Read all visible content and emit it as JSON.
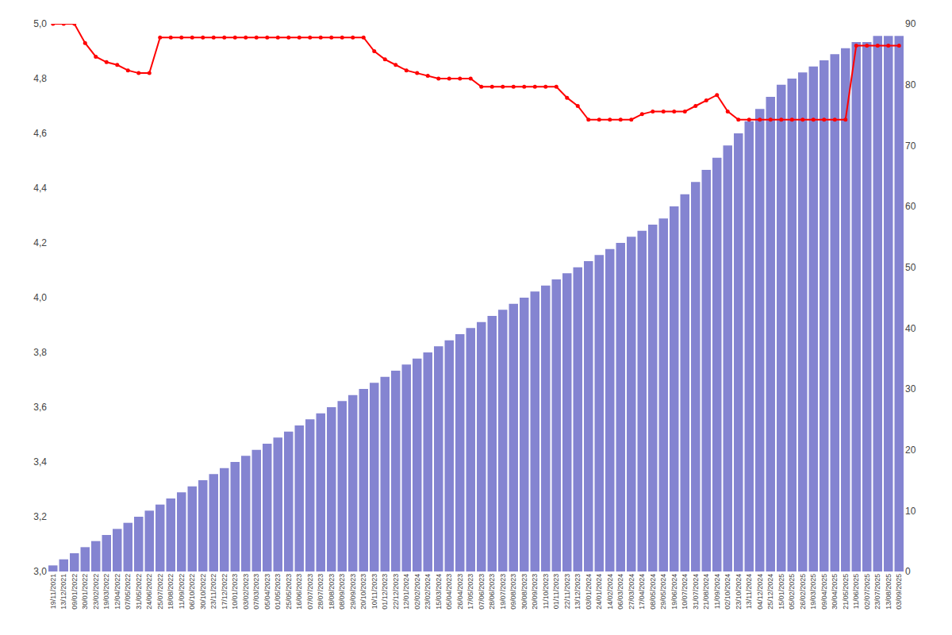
{
  "chart_data": {
    "type": "bar",
    "categories": [
      "19/11/2021",
      "13/12/2021",
      "09/01/2022",
      "30/01/2022",
      "23/02/2022",
      "19/03/2022",
      "12/04/2022",
      "07/05/2022",
      "31/05/2022",
      "24/06/2022",
      "25/07/2022",
      "18/08/2022",
      "11/09/2022",
      "06/10/2022",
      "30/10/2022",
      "23/11/2022",
      "17/12/2022",
      "10/01/2023",
      "03/02/2023",
      "07/03/2023",
      "05/04/2023",
      "01/05/2023",
      "25/05/2023",
      "16/06/2023",
      "07/07/2023",
      "28/07/2023",
      "18/08/2023",
      "08/09/2023",
      "29/09/2023",
      "20/10/2023",
      "10/11/2023",
      "01/12/2023",
      "22/12/2023",
      "12/01/2024",
      "02/02/2024",
      "23/02/2024",
      "15/03/2024",
      "05/04/2023",
      "26/04/2023",
      "17/05/2023",
      "07/06/2023",
      "28/06/2023",
      "19/07/2023",
      "09/08/2023",
      "30/08/2023",
      "20/09/2023",
      "11/10/2023",
      "01/11/2023",
      "22/11/2023",
      "13/12/2023",
      "03/01/2024",
      "24/01/2024",
      "14/02/2024",
      "06/03/2024",
      "27/03/2024",
      "17/04/2024",
      "08/05/2024",
      "29/05/2024",
      "19/06/2024",
      "10/07/2024",
      "31/07/2024",
      "21/08/2024",
      "11/09/2024",
      "02/10/2024",
      "23/10/2024",
      "13/11/2024",
      "04/12/2024",
      "25/12/2024",
      "15/01/2025",
      "05/02/2025",
      "26/02/2025",
      "19/03/2025",
      "09/04/2025",
      "30/04/2025",
      "21/05/2025",
      "11/06/2025",
      "02/07/2025",
      "23/07/2025",
      "13/08/2025",
      "03/09/2025"
    ],
    "series": [
      {
        "type": "bar",
        "axis": "y2",
        "color": "#7777cc",
        "values": [
          1,
          2,
          3,
          4,
          5,
          6,
          7,
          8,
          9,
          10,
          11,
          12,
          13,
          14,
          15,
          16,
          17,
          18,
          19,
          20,
          21,
          22,
          23,
          24,
          25,
          26,
          27,
          28,
          29,
          30,
          31,
          32,
          33,
          34,
          35,
          36,
          37,
          38,
          39,
          40,
          41,
          42,
          43,
          44,
          45,
          46,
          47,
          48,
          49,
          50,
          51,
          52,
          53,
          54,
          55,
          56,
          57,
          58,
          60,
          62,
          64,
          66,
          68,
          70,
          72,
          74,
          76,
          78,
          80,
          81,
          82,
          83,
          84,
          85,
          86,
          87,
          87,
          88,
          88,
          88
        ]
      },
      {
        "type": "line",
        "color": "#ff0000",
        "marker": "circle",
        "values": [
          5.0,
          5.0,
          5.0,
          4.93,
          4.88,
          4.86,
          4.85,
          4.83,
          4.82,
          4.82,
          4.95,
          4.95,
          4.95,
          4.95,
          4.95,
          4.95,
          4.95,
          4.95,
          4.95,
          4.95,
          4.95,
          4.95,
          4.95,
          4.95,
          4.95,
          4.95,
          4.95,
          4.95,
          4.95,
          4.95,
          4.9,
          4.87,
          4.85,
          4.83,
          4.82,
          4.81,
          4.8,
          4.8,
          4.8,
          4.8,
          4.77,
          4.77,
          4.77,
          4.77,
          4.77,
          4.77,
          4.77,
          4.77,
          4.73,
          4.7,
          4.65,
          4.65,
          4.65,
          4.65,
          4.65,
          4.67,
          4.68,
          4.68,
          4.68,
          4.68,
          4.7,
          4.72,
          4.74,
          4.68,
          4.65,
          4.65,
          4.65,
          4.65,
          4.65,
          4.65,
          4.65,
          4.65,
          4.65,
          4.65,
          4.65,
          4.92,
          4.92,
          4.92,
          4.92,
          4.92
        ]
      }
    ],
    "ylim": [
      3.0,
      5.0
    ],
    "yticks": [
      {
        "value": 3.0,
        "label": "3,0"
      },
      {
        "value": 3.2,
        "label": "3,2"
      },
      {
        "value": 3.4,
        "label": "3,4"
      },
      {
        "value": 3.6,
        "label": "3,6"
      },
      {
        "value": 3.8,
        "label": "3,8"
      },
      {
        "value": 4.0,
        "label": "4,0"
      },
      {
        "value": 4.2,
        "label": "4,2"
      },
      {
        "value": 4.4,
        "label": "4,4"
      },
      {
        "value": 4.6,
        "label": "4,6"
      },
      {
        "value": 4.8,
        "label": "4,8"
      },
      {
        "value": 5.0,
        "label": "5,0"
      }
    ],
    "y2lim": [
      0,
      90
    ],
    "y2ticks": [
      0,
      10,
      20,
      30,
      40,
      50,
      60,
      70,
      80,
      90
    ],
    "grid": false
  }
}
